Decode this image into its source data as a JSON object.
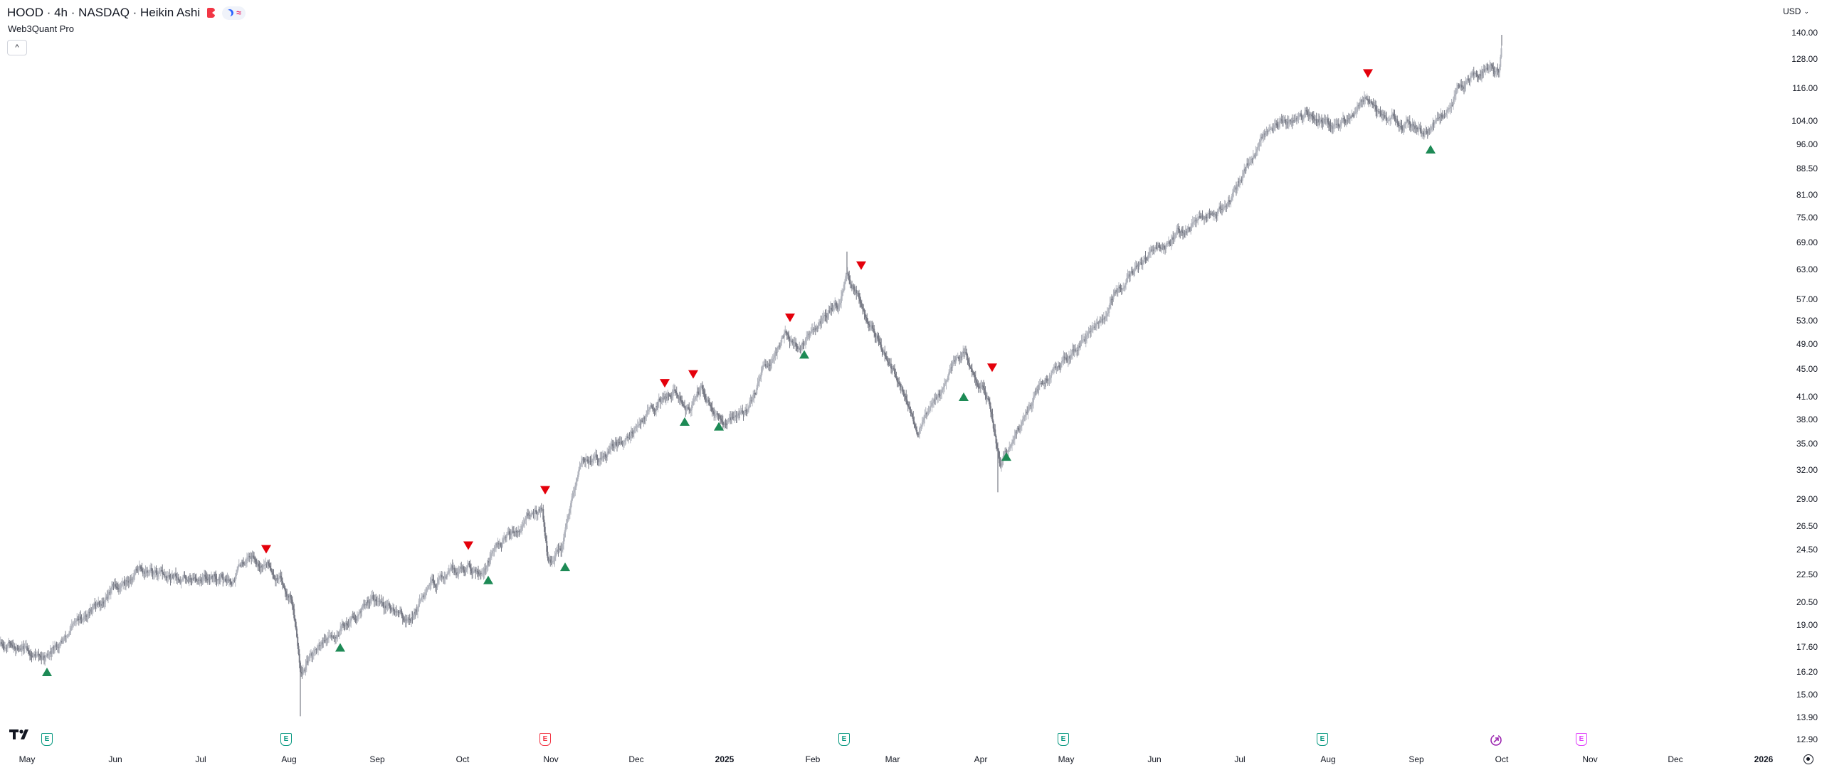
{
  "header": {
    "title": "HOOD · 4h · NASDAQ · Heikin Ashi",
    "indicator": "Web3Quant Pro",
    "collapse_label": "^",
    "wave_glyph": "≈",
    "currency": "USD",
    "caret": "⌄"
  },
  "colors": {
    "bull": "#b2b5be",
    "bear": "#787b86",
    "sell_marker": "#e4000b",
    "buy_marker": "#1d8a55"
  },
  "icons": {
    "logo": "tradingview-logo-icon",
    "earnings": "earnings-icon",
    "dividend": "dividend-icon",
    "settings": "settings-icon"
  },
  "events": [
    {
      "label": "E",
      "kind": "green",
      "date": "2024-05-08"
    },
    {
      "label": "E",
      "kind": "green",
      "date": "2024-07-31"
    },
    {
      "label": "E",
      "kind": "red",
      "date": "2024-10-30"
    },
    {
      "label": "E",
      "kind": "green",
      "date": "2025-02-12"
    },
    {
      "label": "E",
      "kind": "green",
      "date": "2025-04-30"
    },
    {
      "label": "E",
      "kind": "green",
      "date": "2025-07-30"
    },
    {
      "label": "E",
      "kind": "pink",
      "date": "2025-10-29"
    }
  ],
  "dividend_date": "2025-09-29",
  "chart_data": {
    "type": "candlestick",
    "title": "HOOD · 4h · NASDAQ · Heikin Ashi",
    "scale": "log",
    "x_labels": [
      {
        "text": "May",
        "date": "2024-05-01"
      },
      {
        "text": "Jun",
        "date": "2024-06-01"
      },
      {
        "text": "Jul",
        "date": "2024-07-01"
      },
      {
        "text": "Aug",
        "date": "2024-08-01"
      },
      {
        "text": "Sep",
        "date": "2024-09-01"
      },
      {
        "text": "Oct",
        "date": "2024-10-01"
      },
      {
        "text": "Nov",
        "date": "2024-11-01"
      },
      {
        "text": "Dec",
        "date": "2024-12-01"
      },
      {
        "text": "2025",
        "date": "2025-01-01",
        "bold": true
      },
      {
        "text": "Feb",
        "date": "2025-02-01"
      },
      {
        "text": "Mar",
        "date": "2025-03-01"
      },
      {
        "text": "Apr",
        "date": "2025-04-01"
      },
      {
        "text": "May",
        "date": "2025-05-01"
      },
      {
        "text": "Jun",
        "date": "2025-06-01"
      },
      {
        "text": "Jul",
        "date": "2025-07-01"
      },
      {
        "text": "Aug",
        "date": "2025-08-01"
      },
      {
        "text": "Sep",
        "date": "2025-09-01"
      },
      {
        "text": "Oct",
        "date": "2025-10-01"
      },
      {
        "text": "Nov",
        "date": "2025-11-01"
      },
      {
        "text": "Dec",
        "date": "2025-12-01"
      },
      {
        "text": "2026",
        "date": "2026-01-01",
        "bold": true
      }
    ],
    "y_ticks": [
      "140.00",
      "128.00",
      "116.00",
      "104.00",
      "96.00",
      "88.50",
      "81.00",
      "75.00",
      "69.00",
      "63.00",
      "57.00",
      "53.00",
      "49.00",
      "45.00",
      "41.00",
      "38.00",
      "35.00",
      "32.00",
      "29.00",
      "26.50",
      "24.50",
      "22.50",
      "20.50",
      "19.00",
      "17.60",
      "16.20",
      "15.00",
      "13.90",
      "12.90"
    ],
    "price_path": [
      {
        "date": "2024-04-12",
        "price": 17.6
      },
      {
        "date": "2024-04-25",
        "price": 17.9
      },
      {
        "date": "2024-05-08",
        "price": 16.8
      },
      {
        "date": "2024-05-22",
        "price": 19.8
      },
      {
        "date": "2024-06-10",
        "price": 23.0
      },
      {
        "date": "2024-06-20",
        "price": 22.0
      },
      {
        "date": "2024-07-01",
        "price": 22.5
      },
      {
        "date": "2024-07-12",
        "price": 22.3
      },
      {
        "date": "2024-07-18",
        "price": 24.3
      },
      {
        "date": "2024-07-25",
        "price": 23.3
      },
      {
        "date": "2024-08-02",
        "price": 21.0
      },
      {
        "date": "2024-08-05",
        "price": 16.5
      },
      {
        "date": "2024-08-15",
        "price": 18.0
      },
      {
        "date": "2024-08-30",
        "price": 20.8
      },
      {
        "date": "2024-09-12",
        "price": 19.3
      },
      {
        "date": "2024-09-25",
        "price": 22.6
      },
      {
        "date": "2024-10-08",
        "price": 23.0
      },
      {
        "date": "2024-10-20",
        "price": 26.5
      },
      {
        "date": "2024-10-29",
        "price": 28.2
      },
      {
        "date": "2024-10-31",
        "price": 23.5
      },
      {
        "date": "2024-11-05",
        "price": 24.5
      },
      {
        "date": "2024-11-12",
        "price": 33.0
      },
      {
        "date": "2024-11-20",
        "price": 33.2
      },
      {
        "date": "2024-12-05",
        "price": 39.0
      },
      {
        "date": "2024-12-14",
        "price": 42.0
      },
      {
        "date": "2024-12-20",
        "price": 39.0
      },
      {
        "date": "2024-12-24",
        "price": 42.5
      },
      {
        "date": "2024-12-31",
        "price": 37.3
      },
      {
        "date": "2025-01-08",
        "price": 39.0
      },
      {
        "date": "2025-01-22",
        "price": 51.0
      },
      {
        "date": "2025-01-27",
        "price": 48.0
      },
      {
        "date": "2025-02-10",
        "price": 56.0
      },
      {
        "date": "2025-02-13",
        "price": 62.0
      },
      {
        "date": "2025-02-24",
        "price": 50.0
      },
      {
        "date": "2025-03-10",
        "price": 37.0
      },
      {
        "date": "2025-03-26",
        "price": 48.0
      },
      {
        "date": "2025-04-04",
        "price": 40.5
      },
      {
        "date": "2025-04-08",
        "price": 32.5
      },
      {
        "date": "2025-04-22",
        "price": 43.0
      },
      {
        "date": "2025-05-08",
        "price": 50.0
      },
      {
        "date": "2025-05-26",
        "price": 64.0
      },
      {
        "date": "2025-06-12",
        "price": 72.0
      },
      {
        "date": "2025-06-28",
        "price": 80.0
      },
      {
        "date": "2025-07-10",
        "price": 100.0
      },
      {
        "date": "2025-07-28",
        "price": 106.0
      },
      {
        "date": "2025-08-05",
        "price": 102.0
      },
      {
        "date": "2025-08-14",
        "price": 114.0
      },
      {
        "date": "2025-08-22",
        "price": 105.0
      },
      {
        "date": "2025-09-05",
        "price": 100.0
      },
      {
        "date": "2025-09-16",
        "price": 116.0
      },
      {
        "date": "2025-09-26",
        "price": 124.0
      },
      {
        "date": "2025-09-30",
        "price": 123.0
      },
      {
        "date": "2025-10-01",
        "price": 134.0
      }
    ],
    "wicks": [
      {
        "date": "2024-08-05",
        "low": 13.95
      },
      {
        "date": "2025-04-07",
        "low": 29.7
      },
      {
        "date": "2025-02-13",
        "high": 66.9
      },
      {
        "date": "2025-10-01",
        "high": 139.0
      }
    ],
    "signals": [
      {
        "type": "buy",
        "date": "2024-05-08",
        "price": 16.2
      },
      {
        "type": "sell",
        "date": "2024-07-24",
        "price": 24.5
      },
      {
        "type": "buy",
        "date": "2024-08-19",
        "price": 17.6
      },
      {
        "type": "sell",
        "date": "2024-10-03",
        "price": 24.8
      },
      {
        "type": "buy",
        "date": "2024-10-10",
        "price": 22.1
      },
      {
        "type": "sell",
        "date": "2024-10-30",
        "price": 29.9
      },
      {
        "type": "buy",
        "date": "2024-11-06",
        "price": 23.1
      },
      {
        "type": "sell",
        "date": "2024-12-11",
        "price": 42.9
      },
      {
        "type": "buy",
        "date": "2024-12-18",
        "price": 37.7
      },
      {
        "type": "sell",
        "date": "2024-12-21",
        "price": 44.2
      },
      {
        "type": "buy",
        "date": "2024-12-30",
        "price": 37.1
      },
      {
        "type": "sell",
        "date": "2025-01-24",
        "price": 53.5
      },
      {
        "type": "buy",
        "date": "2025-01-29",
        "price": 47.3
      },
      {
        "type": "sell",
        "date": "2025-02-18",
        "price": 63.8
      },
      {
        "type": "buy",
        "date": "2025-03-26",
        "price": 41.0
      },
      {
        "type": "sell",
        "date": "2025-04-05",
        "price": 45.2
      },
      {
        "type": "buy",
        "date": "2025-04-10",
        "price": 33.5
      },
      {
        "type": "sell",
        "date": "2025-08-15",
        "price": 122.0
      },
      {
        "type": "buy",
        "date": "2025-09-06",
        "price": 94.5
      }
    ]
  }
}
